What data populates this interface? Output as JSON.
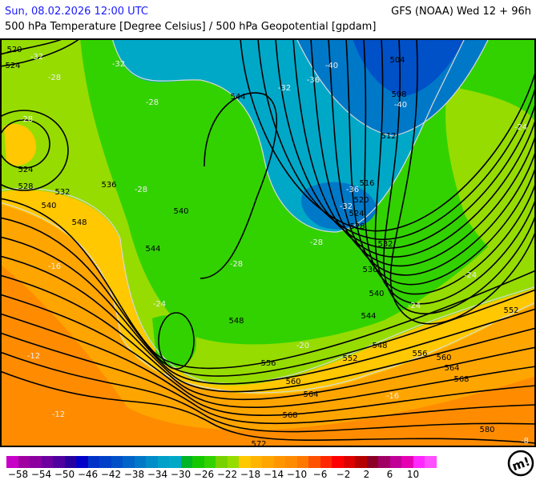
{
  "header": {
    "valid_time": "Sun, 08.02.2026 12:00 UTC",
    "model_run": "GFS (NOAA) Wed 12 + 96h",
    "parameter": "500 hPa Temperature [Degree Celsius] / 500 hPa Geopotential [gpdam]"
  },
  "map": {
    "region": "Europe",
    "fill_colors": {
      "orange": "#ff8c00",
      "light_orange": "#ffa500",
      "yellow": "#ffc800",
      "light_green": "#96dc00",
      "green": "#32d200",
      "dark_green": "#14c800",
      "cyan": "#00a8c8",
      "blue": "#0078c8",
      "dark_blue": "#0050c8"
    },
    "geopotential_labels": [
      "520",
      "524",
      "524",
      "528",
      "532",
      "536",
      "540",
      "548",
      "540",
      "544",
      "544",
      "504",
      "508",
      "512",
      "516",
      "520",
      "524",
      "528",
      "532",
      "536",
      "540",
      "544",
      "548",
      "548",
      "552",
      "556",
      "560",
      "564",
      "568",
      "552",
      "556",
      "560",
      "564",
      "568",
      "572",
      "580"
    ],
    "temperature_labels": [
      "-32",
      "-32",
      "-28",
      "-28",
      "-28",
      "-28",
      "-28",
      "-32",
      "-36",
      "-40",
      "-40",
      "-36",
      "-32",
      "-24",
      "-24",
      "-24",
      "-24",
      "-20",
      "-16",
      "-12",
      "-12",
      "-16",
      "-8",
      "-28"
    ]
  },
  "legend": {
    "colors": [
      "#c800c8",
      "#a000a0",
      "#8c00a0",
      "#6e00a0",
      "#5000a0",
      "#2800a0",
      "#0000c8",
      "#0032c8",
      "#0040c8",
      "#0050c8",
      "#0064c8",
      "#0078c8",
      "#008cc8",
      "#00a0c8",
      "#00a8c8",
      "#00b428",
      "#14c800",
      "#32d200",
      "#78d200",
      "#96dc00",
      "#ffc800",
      "#ffb400",
      "#ffa500",
      "#ff9600",
      "#ff8c00",
      "#ff7800",
      "#ff5000",
      "#ff2800",
      "#ff0000",
      "#dc0000",
      "#b40000",
      "#8c0028",
      "#a00064",
      "#c00096",
      "#e600b4",
      "#ff28ff",
      "#ff50ff"
    ],
    "tick_labels": [
      "−58",
      "−54",
      "−50",
      "−46",
      "−42",
      "−38",
      "−34",
      "−30",
      "−26",
      "−22",
      "−18",
      "−14",
      "−10",
      "−6",
      "−2",
      "2",
      "6",
      "10"
    ]
  },
  "logo": {
    "text": "m!"
  }
}
